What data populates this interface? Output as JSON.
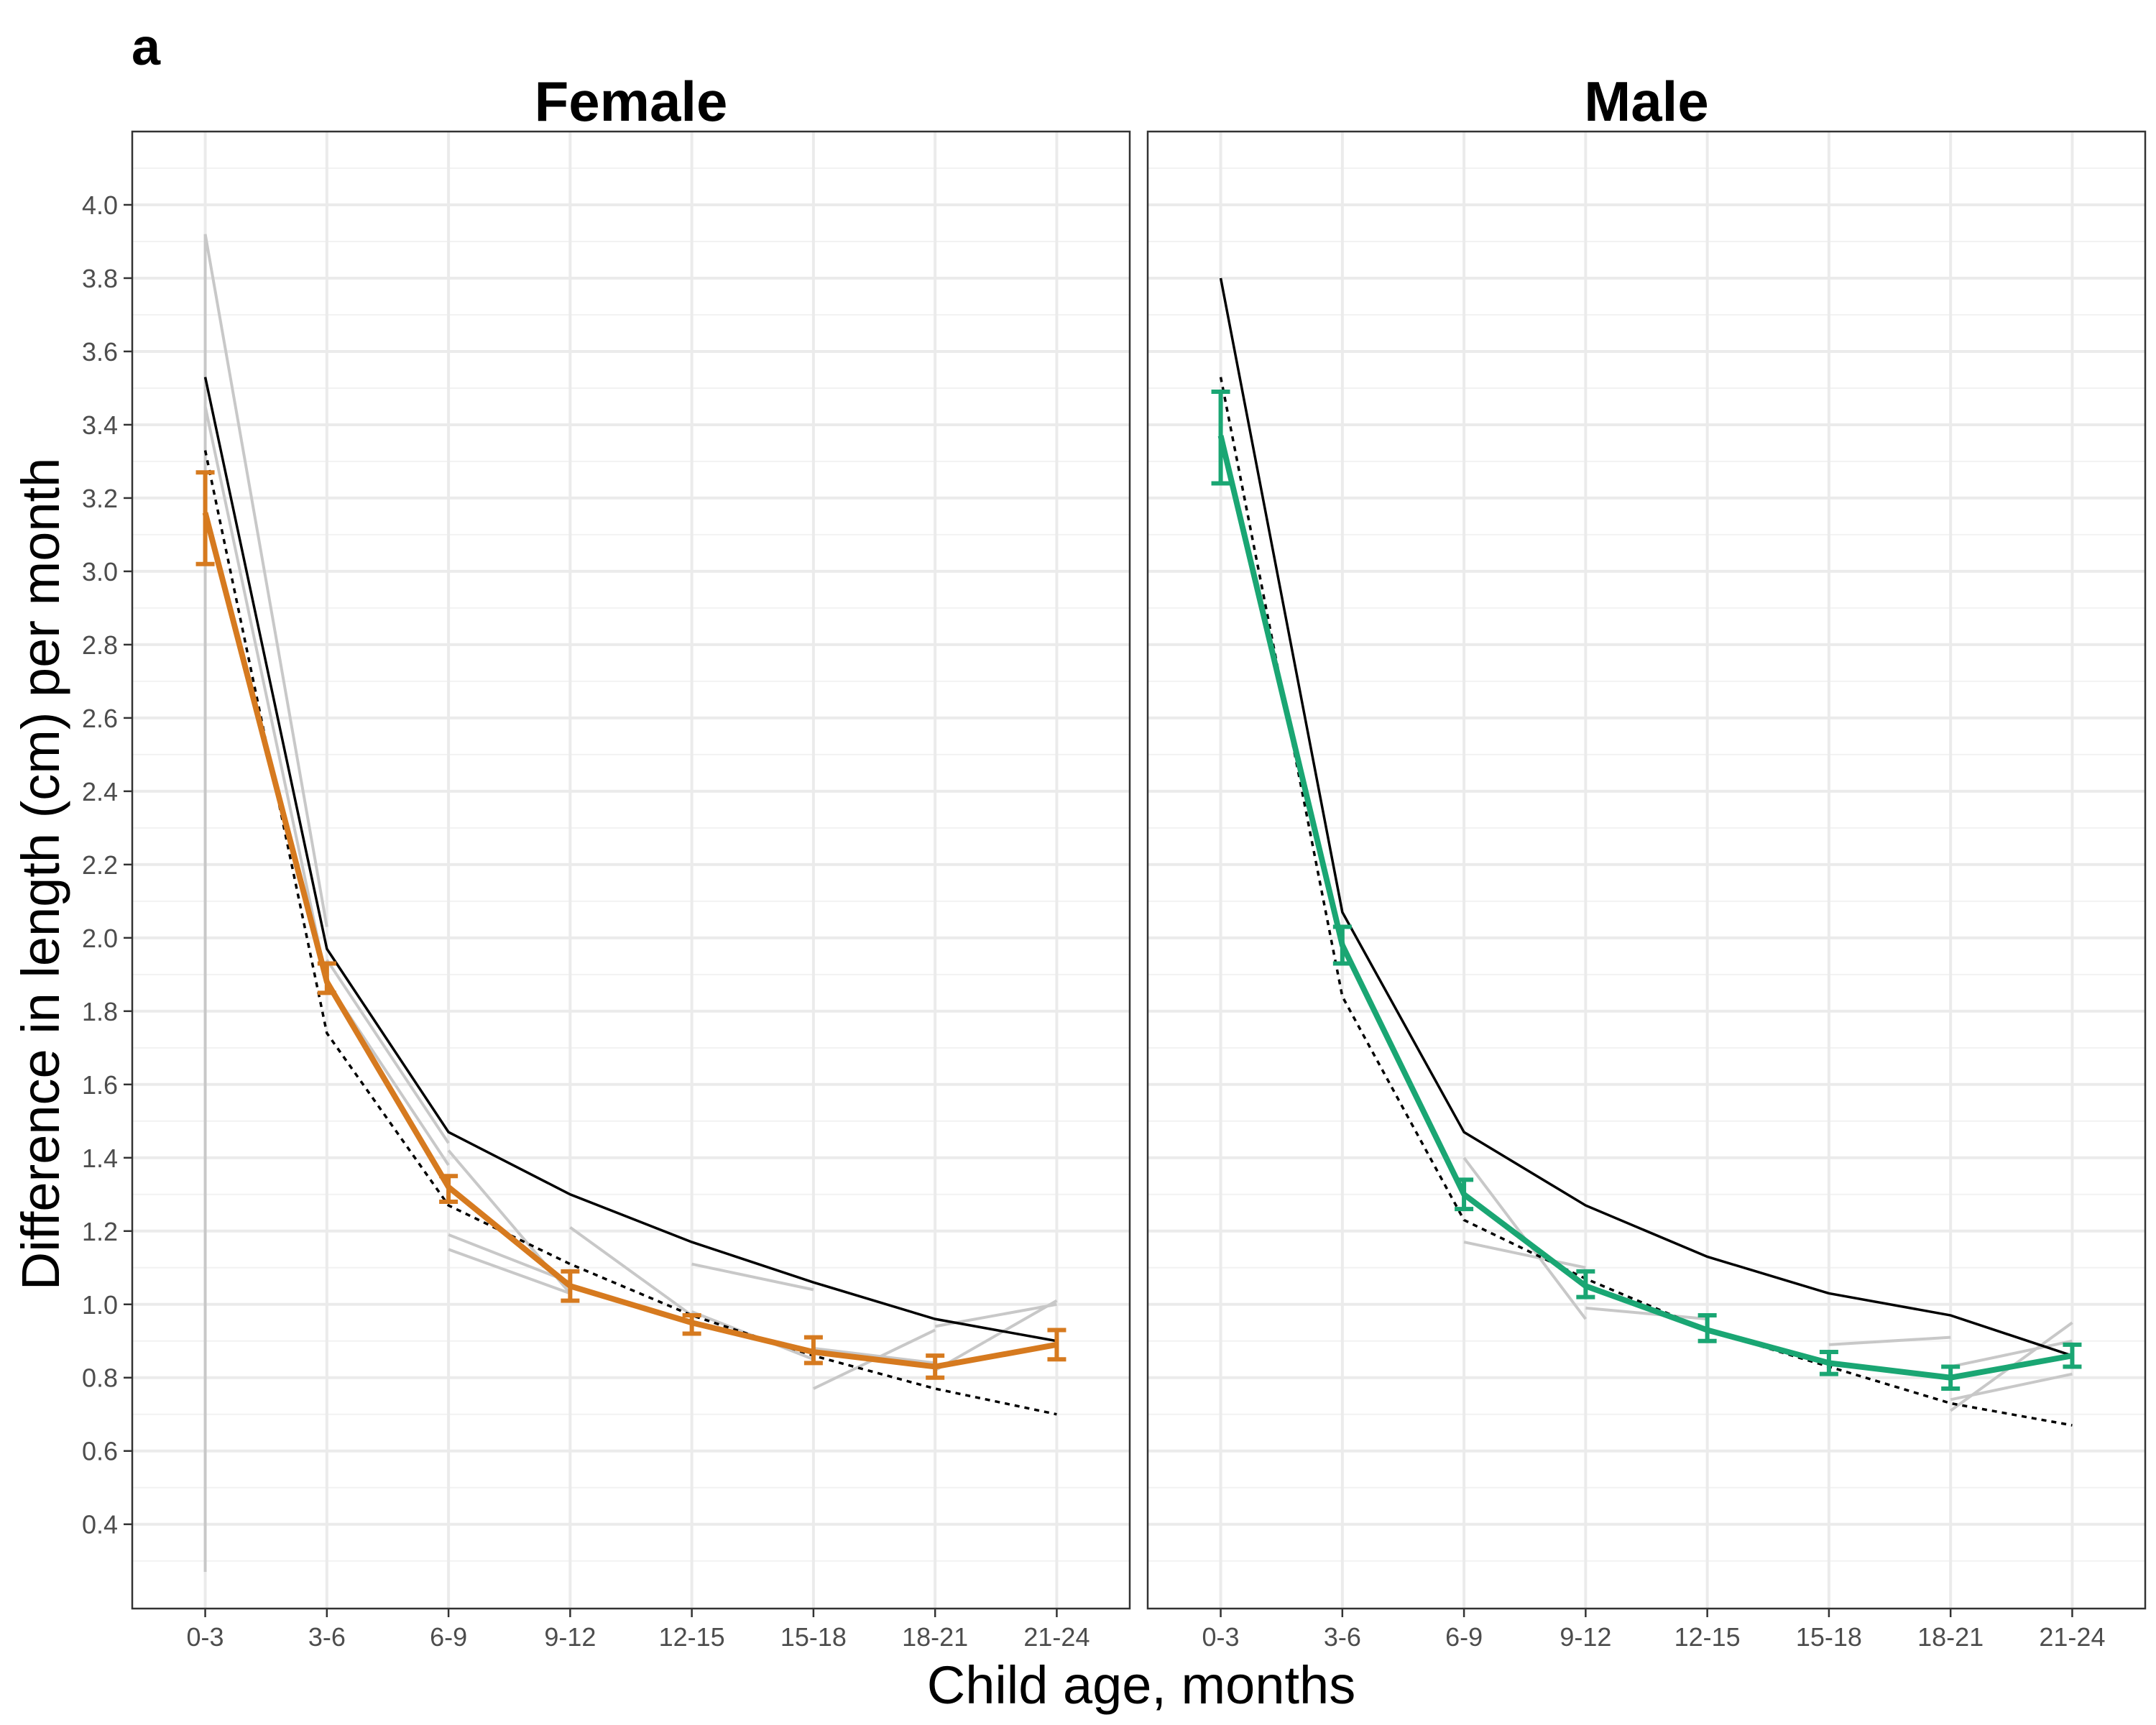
{
  "panel_label": "a",
  "chart_data": {
    "type": "line",
    "facets": [
      "Female",
      "Male"
    ],
    "xlabel": "Child age, months",
    "ylabel": "Difference in length (cm) per month",
    "categories": [
      "0-3",
      "3-6",
      "6-9",
      "9-12",
      "12-15",
      "15-18",
      "18-21",
      "21-24"
    ],
    "ylim": [
      0.17,
      4.2
    ],
    "yticks": [
      0.4,
      0.6,
      0.8,
      1.0,
      1.2,
      1.4,
      1.6,
      1.8,
      2.0,
      2.2,
      2.4,
      2.6,
      2.8,
      3.0,
      3.2,
      3.4,
      3.6,
      3.8,
      4.0
    ],
    "ytick_labels": [
      "0.4",
      "0.6",
      "0.8",
      "1.0",
      "1.2",
      "1.4",
      "1.6",
      "1.8",
      "2.0",
      "2.2",
      "2.4",
      "2.6",
      "2.8",
      "3.0",
      "3.2",
      "3.4",
      "3.6",
      "3.8",
      "4.0"
    ],
    "grid": true,
    "panels": [
      {
        "facet": "Female",
        "color": "#d67a1f",
        "main": {
          "values": [
            3.16,
            1.88,
            1.32,
            1.05,
            0.95,
            0.87,
            0.83,
            0.89
          ],
          "lower": [
            3.02,
            1.85,
            1.28,
            1.01,
            0.92,
            0.84,
            0.8,
            0.85
          ],
          "upper": [
            3.27,
            1.93,
            1.35,
            1.09,
            0.97,
            0.91,
            0.86,
            0.93
          ]
        },
        "reference_solid": [
          3.53,
          1.97,
          1.47,
          1.3,
          1.17,
          1.06,
          0.96,
          0.9
        ],
        "reference_dotted": [
          3.33,
          1.74,
          1.27,
          1.11,
          0.97,
          0.86,
          0.77,
          0.7
        ],
        "study_segments": [
          [
            [
              0,
              3.92
            ],
            [
              1,
              2.03
            ]
          ],
          [
            [
              0,
              3.45
            ],
            [
              1,
              1.88
            ]
          ],
          [
            [
              0,
              0.27
            ],
            [
              0,
              3.92
            ]
          ],
          [
            [
              1,
              1.94
            ],
            [
              2,
              1.44
            ]
          ],
          [
            [
              1,
              1.88
            ],
            [
              2,
              1.38
            ]
          ],
          [
            [
              2,
              1.42
            ],
            [
              3,
              1.03
            ]
          ],
          [
            [
              2,
              1.19
            ],
            [
              3,
              1.06
            ]
          ],
          [
            [
              2,
              1.15
            ],
            [
              3,
              1.03
            ]
          ],
          [
            [
              3,
              1.21
            ],
            [
              4,
              0.97
            ]
          ],
          [
            [
              4,
              1.11
            ],
            [
              5,
              1.04
            ]
          ],
          [
            [
              4,
              0.98
            ],
            [
              5,
              0.85
            ]
          ],
          [
            [
              5,
              0.77
            ],
            [
              6,
              0.93
            ]
          ],
          [
            [
              5,
              0.88
            ],
            [
              6,
              0.84
            ]
          ],
          [
            [
              6,
              0.82
            ],
            [
              7,
              1.01
            ]
          ],
          [
            [
              6,
              0.94
            ],
            [
              7,
              1.0
            ]
          ]
        ]
      },
      {
        "facet": "Male",
        "color": "#1aa673",
        "main": {
          "values": [
            3.37,
            1.98,
            1.3,
            1.05,
            0.93,
            0.84,
            0.8,
            0.86
          ],
          "lower": [
            3.24,
            1.93,
            1.26,
            1.02,
            0.9,
            0.81,
            0.77,
            0.83
          ],
          "upper": [
            3.49,
            2.03,
            1.34,
            1.09,
            0.97,
            0.87,
            0.83,
            0.89
          ]
        },
        "reference_solid": [
          3.8,
          2.07,
          1.47,
          1.27,
          1.13,
          1.03,
          0.97,
          0.86
        ],
        "reference_dotted": [
          3.53,
          1.84,
          1.23,
          1.07,
          0.93,
          0.83,
          0.73,
          0.67
        ],
        "study_segments": [
          [
            [
              2,
              1.4
            ],
            [
              3,
              0.96
            ]
          ],
          [
            [
              2,
              1.17
            ],
            [
              3,
              1.1
            ]
          ],
          [
            [
              3,
              0.99
            ],
            [
              4,
              0.96
            ]
          ],
          [
            [
              5,
              0.89
            ],
            [
              6,
              0.91
            ]
          ],
          [
            [
              6,
              0.71
            ],
            [
              7,
              0.95
            ]
          ],
          [
            [
              6,
              0.83
            ],
            [
              7,
              0.9
            ]
          ],
          [
            [
              6,
              0.74
            ],
            [
              7,
              0.81
            ]
          ]
        ]
      }
    ]
  }
}
